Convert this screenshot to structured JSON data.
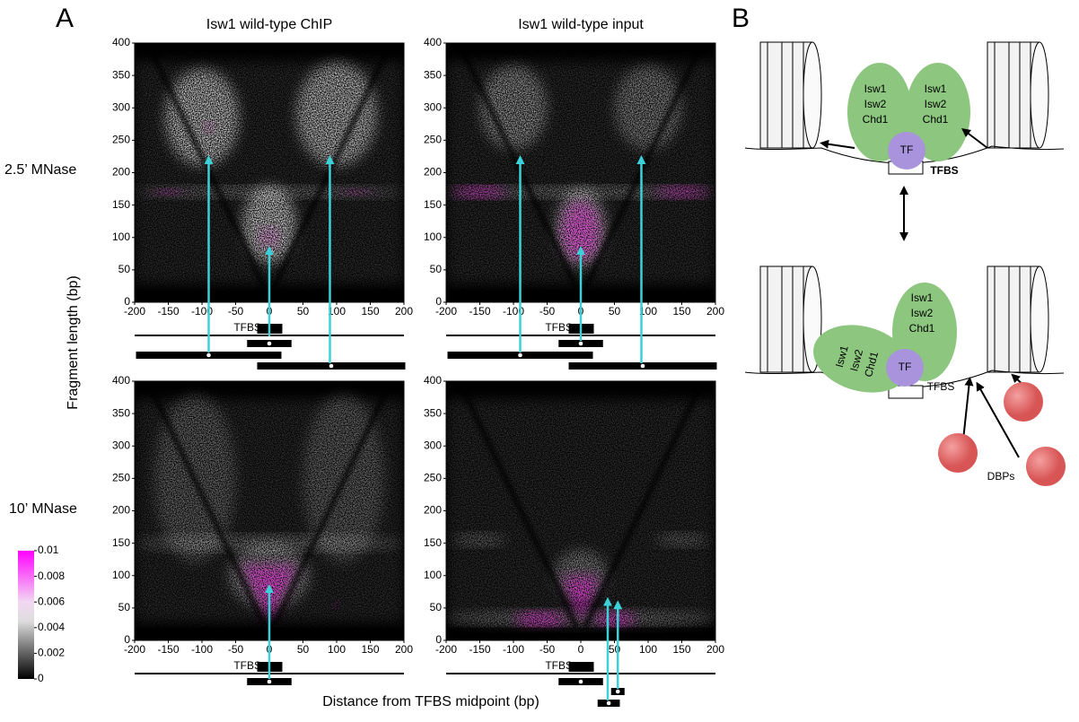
{
  "panel_a": {
    "label": "A",
    "column_titles": [
      "Isw1 wild-type ChIP",
      "Isw1 wild-type input"
    ],
    "row_labels": [
      "2.5’ MNase",
      "10’ MNase"
    ],
    "y_axis_label": "Fragment length (bp)",
    "x_axis_label": "Distance from TFBS midpoint (bp)",
    "x_ticks": [
      -200,
      -150,
      -100,
      -50,
      0,
      50,
      100,
      150,
      200
    ],
    "y_ticks": [
      0,
      50,
      100,
      150,
      200,
      250,
      300,
      350,
      400
    ],
    "tfbs_label": "TFBS",
    "colorbar_ticks": [
      0.01,
      0.008,
      0.006,
      0.004,
      0.002,
      0
    ]
  },
  "panel_b": {
    "label": "B",
    "proteins": [
      "Isw1",
      "Isw2",
      "Chd1"
    ],
    "tf": "TF",
    "tfbs": "TFBS",
    "dbps": "DBPs"
  }
}
